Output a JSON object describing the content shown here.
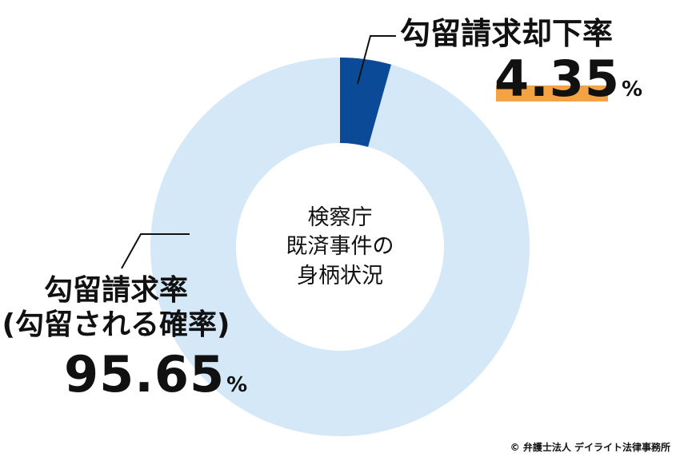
{
  "chart_data": {
    "type": "donut",
    "center_title": "検察庁\n既済事件の\n身柄状況",
    "categories": [
      "勾留請求却下率",
      "勾留請求率\n(勾留される確率)"
    ],
    "values": [
      4.35,
      95.65
    ],
    "unit": "%",
    "colors": [
      "#0b4a97",
      "#d4e8f7"
    ],
    "source": "© 弁護士法人 デイライト法律事務所"
  }
}
